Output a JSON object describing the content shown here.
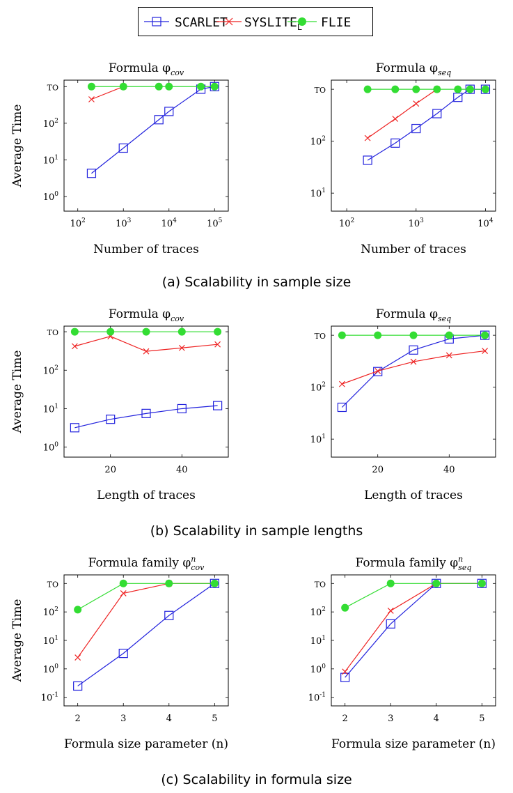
{
  "legend": [
    {
      "name": "SCARLET",
      "name_color": "#cc0000",
      "color": "#2222dd",
      "marker": "square",
      "sub": ""
    },
    {
      "name": "SYSLITE",
      "name_color": "#000000",
      "color": "#ee2222",
      "marker": "cross",
      "sub": "L"
    },
    {
      "name": "FLIE",
      "name_color": "#000000",
      "color": "#33dd33",
      "marker": "circle",
      "sub": ""
    }
  ],
  "captions": {
    "a": "(a) Scalability in sample size",
    "b": "(b) Scalability in sample lengths",
    "c": "(c) Scalability in formula size"
  },
  "chart_data": [
    {
      "type": "line",
      "title": "Formula φcov",
      "title_base": "Formula φ",
      "title_sub": "cov",
      "title_sup": "",
      "xlabel": "Number of traces",
      "ylabel": "Average Time",
      "xscale": "log",
      "xlim": [
        50,
        200000
      ],
      "xticks": [
        100,
        1000,
        10000,
        100000
      ],
      "xticklabels": [
        "10^2",
        "10^3",
        "10^4",
        "10^5"
      ],
      "yscale": "log",
      "ylim": [
        0.4,
        1500
      ],
      "yticks": [
        1,
        10,
        100,
        1000
      ],
      "yticklabels": [
        "10^0",
        "10^1",
        "10^2",
        "TO"
      ],
      "series": [
        {
          "name": "SCARLET",
          "x": [
            200,
            1000,
            6000,
            10000,
            50000,
            100000
          ],
          "y": [
            4.3,
            21,
            125,
            210,
            850,
            1000
          ]
        },
        {
          "name": "SYSLITE_L",
          "x": [
            200,
            1000
          ],
          "y": [
            450,
            1000
          ]
        },
        {
          "name": "FLIE",
          "x": [
            200,
            1000,
            6000,
            10000,
            50000,
            100000
          ],
          "y": [
            1000,
            1000,
            1000,
            1000,
            1000,
            1000
          ]
        }
      ]
    },
    {
      "type": "line",
      "title": "Formula φseq",
      "title_base": "Formula φ",
      "title_sub": "seq",
      "title_sup": "",
      "xlabel": "Number of traces",
      "ylabel": "",
      "xscale": "log",
      "xlim": [
        60,
        14000
      ],
      "xticks": [
        100,
        1000,
        10000
      ],
      "xticklabels": [
        "10^2",
        "10^3",
        "10^4"
      ],
      "yscale": "log",
      "ylim": [
        4.5,
        1500
      ],
      "yticks": [
        10,
        100,
        1000
      ],
      "yticklabels": [
        "10^1",
        "10^2",
        "TO"
      ],
      "series": [
        {
          "name": "SCARLET",
          "x": [
            200,
            500,
            1000,
            2000,
            4000,
            6000,
            10000
          ],
          "y": [
            43,
            92,
            175,
            340,
            700,
            1000,
            1000
          ]
        },
        {
          "name": "SYSLITE_L",
          "x": [
            200,
            500,
            1000,
            2000
          ],
          "y": [
            115,
            270,
            530,
            1000
          ]
        },
        {
          "name": "FLIE",
          "x": [
            200,
            500,
            1000,
            2000,
            4000,
            6000,
            10000
          ],
          "y": [
            1000,
            1000,
            1000,
            1000,
            1000,
            1000,
            1000
          ]
        }
      ]
    },
    {
      "type": "line",
      "title": "Formula φcov",
      "title_base": "Formula φ",
      "title_sub": "cov",
      "title_sup": "",
      "xlabel": "Length of traces",
      "ylabel": "Average Time",
      "xscale": "linear",
      "xlim": [
        7,
        53
      ],
      "xticks": [
        20,
        40
      ],
      "xticklabels": [
        "20",
        "40"
      ],
      "yscale": "log",
      "ylim": [
        0.55,
        1400
      ],
      "yticks": [
        1,
        10,
        100,
        1000
      ],
      "yticklabels": [
        "10^0",
        "10^1",
        "10^2",
        "TO"
      ],
      "series": [
        {
          "name": "SCARLET",
          "x": [
            10,
            20,
            30,
            40,
            50
          ],
          "y": [
            3.2,
            5.3,
            7.5,
            10,
            12
          ]
        },
        {
          "name": "SYSLITE_L",
          "x": [
            10,
            20,
            30,
            40,
            50
          ],
          "y": [
            420,
            760,
            310,
            380,
            470
          ]
        },
        {
          "name": "FLIE",
          "x": [
            10,
            20,
            30,
            40,
            50
          ],
          "y": [
            1000,
            1000,
            1000,
            1000,
            1000
          ]
        }
      ]
    },
    {
      "type": "line",
      "title": "Formula φseq",
      "title_base": "Formula φ",
      "title_sub": "seq",
      "title_sup": "",
      "xlabel": "Length of traces",
      "ylabel": "",
      "xscale": "linear",
      "xlim": [
        7,
        53
      ],
      "xticks": [
        20,
        40
      ],
      "xticklabels": [
        "20",
        "40"
      ],
      "yscale": "log",
      "ylim": [
        4.5,
        1500
      ],
      "yticks": [
        10,
        100,
        1000
      ],
      "yticklabels": [
        "10^1",
        "10^2",
        "TO"
      ],
      "series": [
        {
          "name": "SCARLET",
          "x": [
            10,
            20,
            30,
            40,
            50
          ],
          "y": [
            41,
            200,
            520,
            850,
            1000
          ]
        },
        {
          "name": "SYSLITE_L",
          "x": [
            10,
            20,
            30,
            40,
            50
          ],
          "y": [
            115,
            205,
            310,
            410,
            500
          ]
        },
        {
          "name": "FLIE",
          "x": [
            10,
            20,
            30,
            40,
            50
          ],
          "y": [
            1000,
            1000,
            1000,
            1000,
            1000
          ]
        }
      ]
    },
    {
      "type": "line",
      "title": "Formula family φncov",
      "title_base": "Formula family φ",
      "title_sub": "cov",
      "title_sup": "n",
      "xlabel": "Formula size parameter (n)",
      "ylabel": "Average Time",
      "xscale": "linear",
      "xlim": [
        1.7,
        5.3
      ],
      "xticks": [
        2,
        3,
        4,
        5
      ],
      "xticklabels": [
        "2",
        "3",
        "4",
        "5"
      ],
      "yscale": "log",
      "ylim": [
        0.05,
        2000
      ],
      "yticks": [
        0.1,
        1,
        10,
        100,
        1000
      ],
      "yticklabels": [
        "10^-1",
        "10^0",
        "10^1",
        "10^2",
        "TO"
      ],
      "series": [
        {
          "name": "SCARLET",
          "x": [
            2,
            3,
            4,
            5
          ],
          "y": [
            0.25,
            3.5,
            75,
            1000
          ]
        },
        {
          "name": "SYSLITE_L",
          "x": [
            2,
            3,
            4,
            5
          ],
          "y": [
            2.5,
            450,
            1000,
            1000
          ]
        },
        {
          "name": "FLIE",
          "x": [
            2,
            3,
            4,
            5
          ],
          "y": [
            120,
            1000,
            1000,
            1000
          ]
        }
      ]
    },
    {
      "type": "line",
      "title": "Formula family φnseq",
      "title_base": "Formula family φ",
      "title_sub": "seq",
      "title_sup": "n",
      "xlabel": "Formula size parameter (n)",
      "ylabel": "",
      "xscale": "linear",
      "xlim": [
        1.7,
        5.3
      ],
      "xticks": [
        2,
        3,
        4,
        5
      ],
      "xticklabels": [
        "2",
        "3",
        "4",
        "5"
      ],
      "yscale": "log",
      "ylim": [
        0.05,
        2000
      ],
      "yticks": [
        0.1,
        1,
        10,
        100,
        1000
      ],
      "yticklabels": [
        "10^-1",
        "10^0",
        "10^1",
        "10^2",
        "TO"
      ],
      "series": [
        {
          "name": "SCARLET",
          "x": [
            2,
            3,
            4,
            5
          ],
          "y": [
            0.5,
            38,
            1000,
            1000
          ]
        },
        {
          "name": "SYSLITE_L",
          "x": [
            2,
            3,
            4,
            5
          ],
          "y": [
            0.8,
            110,
            1000,
            1000
          ]
        },
        {
          "name": "FLIE",
          "x": [
            2,
            3,
            4,
            5
          ],
          "y": [
            140,
            1000,
            1000,
            1000
          ]
        }
      ]
    }
  ]
}
